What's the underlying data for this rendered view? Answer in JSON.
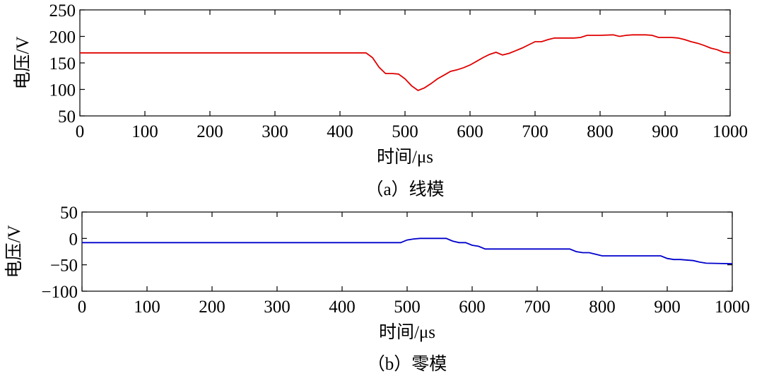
{
  "chart_data": [
    {
      "type": "line",
      "caption": "（a）线模",
      "xlabel": "时间/μs",
      "ylabel": "电压/V",
      "xlim": [
        0,
        1000
      ],
      "ylim": [
        50,
        250
      ],
      "xticks": [
        0,
        100,
        200,
        300,
        400,
        500,
        600,
        700,
        800,
        900,
        1000
      ],
      "yticks": [
        50,
        100,
        150,
        200,
        250
      ],
      "grid": false,
      "series": [
        {
          "color": "#e00000",
          "x": [
            0,
            100,
            200,
            300,
            400,
            440,
            450,
            460,
            470,
            480,
            490,
            500,
            510,
            520,
            530,
            540,
            550,
            560,
            570,
            580,
            590,
            600,
            610,
            620,
            630,
            640,
            650,
            660,
            670,
            680,
            690,
            700,
            710,
            720,
            730,
            740,
            750,
            760,
            770,
            780,
            790,
            800,
            820,
            830,
            840,
            850,
            860,
            870,
            880,
            890,
            900,
            910,
            920,
            930,
            940,
            950,
            960,
            970,
            980,
            990,
            1000
          ],
          "values": [
            169,
            169,
            169,
            169,
            169,
            169,
            160,
            142,
            130,
            130,
            129,
            120,
            107,
            98,
            103,
            111,
            120,
            127,
            134,
            137,
            141,
            146,
            153,
            160,
            166,
            170,
            165,
            168,
            173,
            178,
            184,
            190,
            190,
            194,
            197,
            197,
            197,
            197,
            198,
            202,
            202,
            202,
            203,
            200,
            202,
            203,
            203,
            203,
            202,
            198,
            198,
            198,
            197,
            194,
            190,
            187,
            183,
            178,
            175,
            170,
            169
          ]
        }
      ]
    },
    {
      "type": "line",
      "caption": "（b）零模",
      "xlabel": "时间/μs",
      "ylabel": "电压/V",
      "xlim": [
        0,
        1000
      ],
      "ylim": [
        -100,
        50
      ],
      "xticks": [
        0,
        100,
        200,
        300,
        400,
        500,
        600,
        700,
        800,
        900,
        1000
      ],
      "yticks": [
        -100,
        -50,
        0,
        50
      ],
      "grid": false,
      "series": [
        {
          "color": "#0000cc",
          "x": [
            0,
            100,
            200,
            300,
            400,
            490,
            500,
            510,
            520,
            530,
            540,
            550,
            560,
            570,
            580,
            590,
            600,
            610,
            620,
            630,
            650,
            700,
            750,
            760,
            770,
            780,
            790,
            800,
            850,
            890,
            900,
            910,
            920,
            940,
            950,
            960,
            1000
          ],
          "values": [
            -8,
            -8,
            -8,
            -8,
            -8,
            -8,
            -3,
            -1,
            0,
            0,
            0,
            0,
            0,
            -5,
            -8,
            -8,
            -13,
            -15,
            -20,
            -20,
            -20,
            -20,
            -20,
            -25,
            -27,
            -27,
            -30,
            -33,
            -33,
            -33,
            -38,
            -40,
            -40,
            -42,
            -45,
            -47,
            -48
          ]
        }
      ]
    }
  ]
}
